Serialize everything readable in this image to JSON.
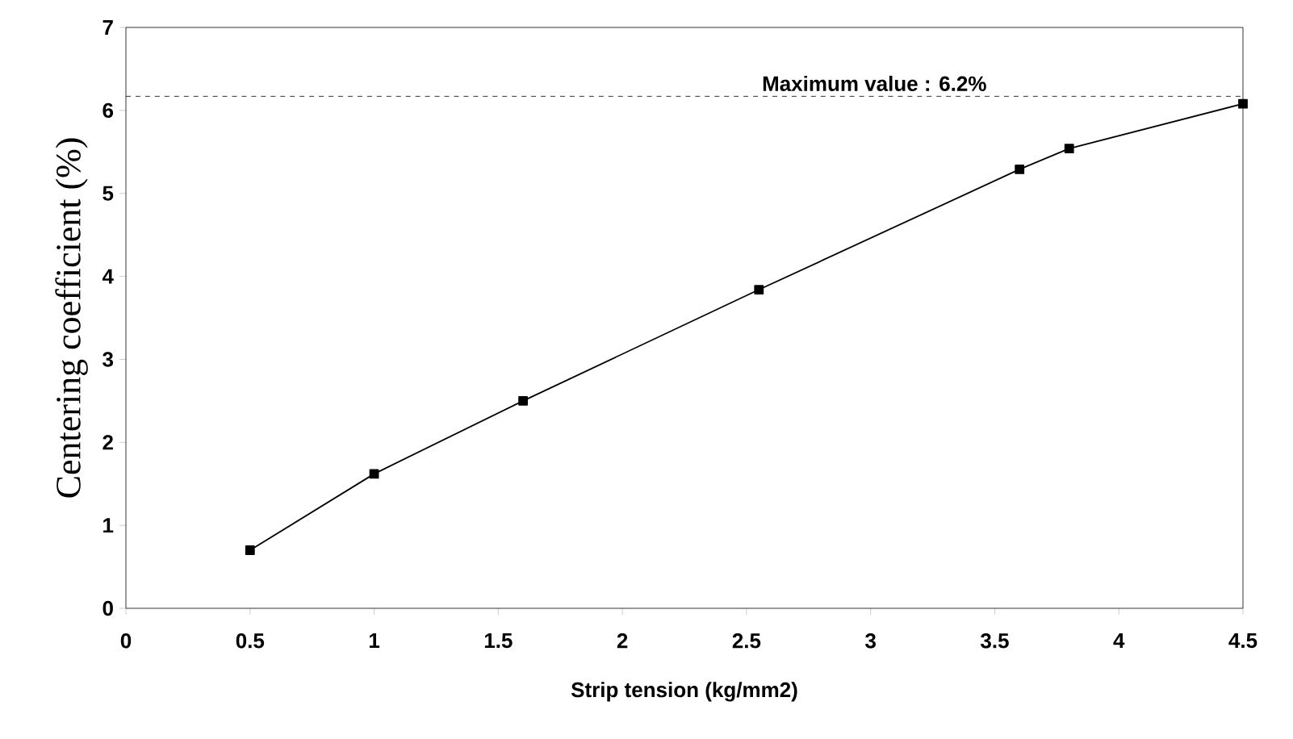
{
  "chart_data": {
    "type": "line",
    "xlabel": "Strip tension (kg/mm2)",
    "ylabel": "Centering coefficient (%)",
    "x": [
      0.5,
      1.0,
      1.6,
      2.55,
      3.6,
      3.8,
      4.5
    ],
    "series": [
      {
        "color": "#000000",
        "values": [
          0.7,
          1.62,
          2.5,
          3.84,
          5.29,
          5.54,
          6.08
        ]
      }
    ],
    "xlim": [
      0,
      4.5
    ],
    "ylim": [
      0,
      7
    ],
    "xticks": [
      0,
      0.5,
      1,
      1.5,
      2,
      2.5,
      3,
      3.5,
      4,
      4.5
    ],
    "yticks": [
      0,
      1,
      2,
      3,
      4,
      5,
      6,
      7
    ],
    "ref_lines": [
      {
        "axis": "y",
        "value": 6.17,
        "label": "Maximum value : 6.2%",
        "line_style": "dashed"
      }
    ],
    "marker": "square",
    "line_style": "solid"
  }
}
